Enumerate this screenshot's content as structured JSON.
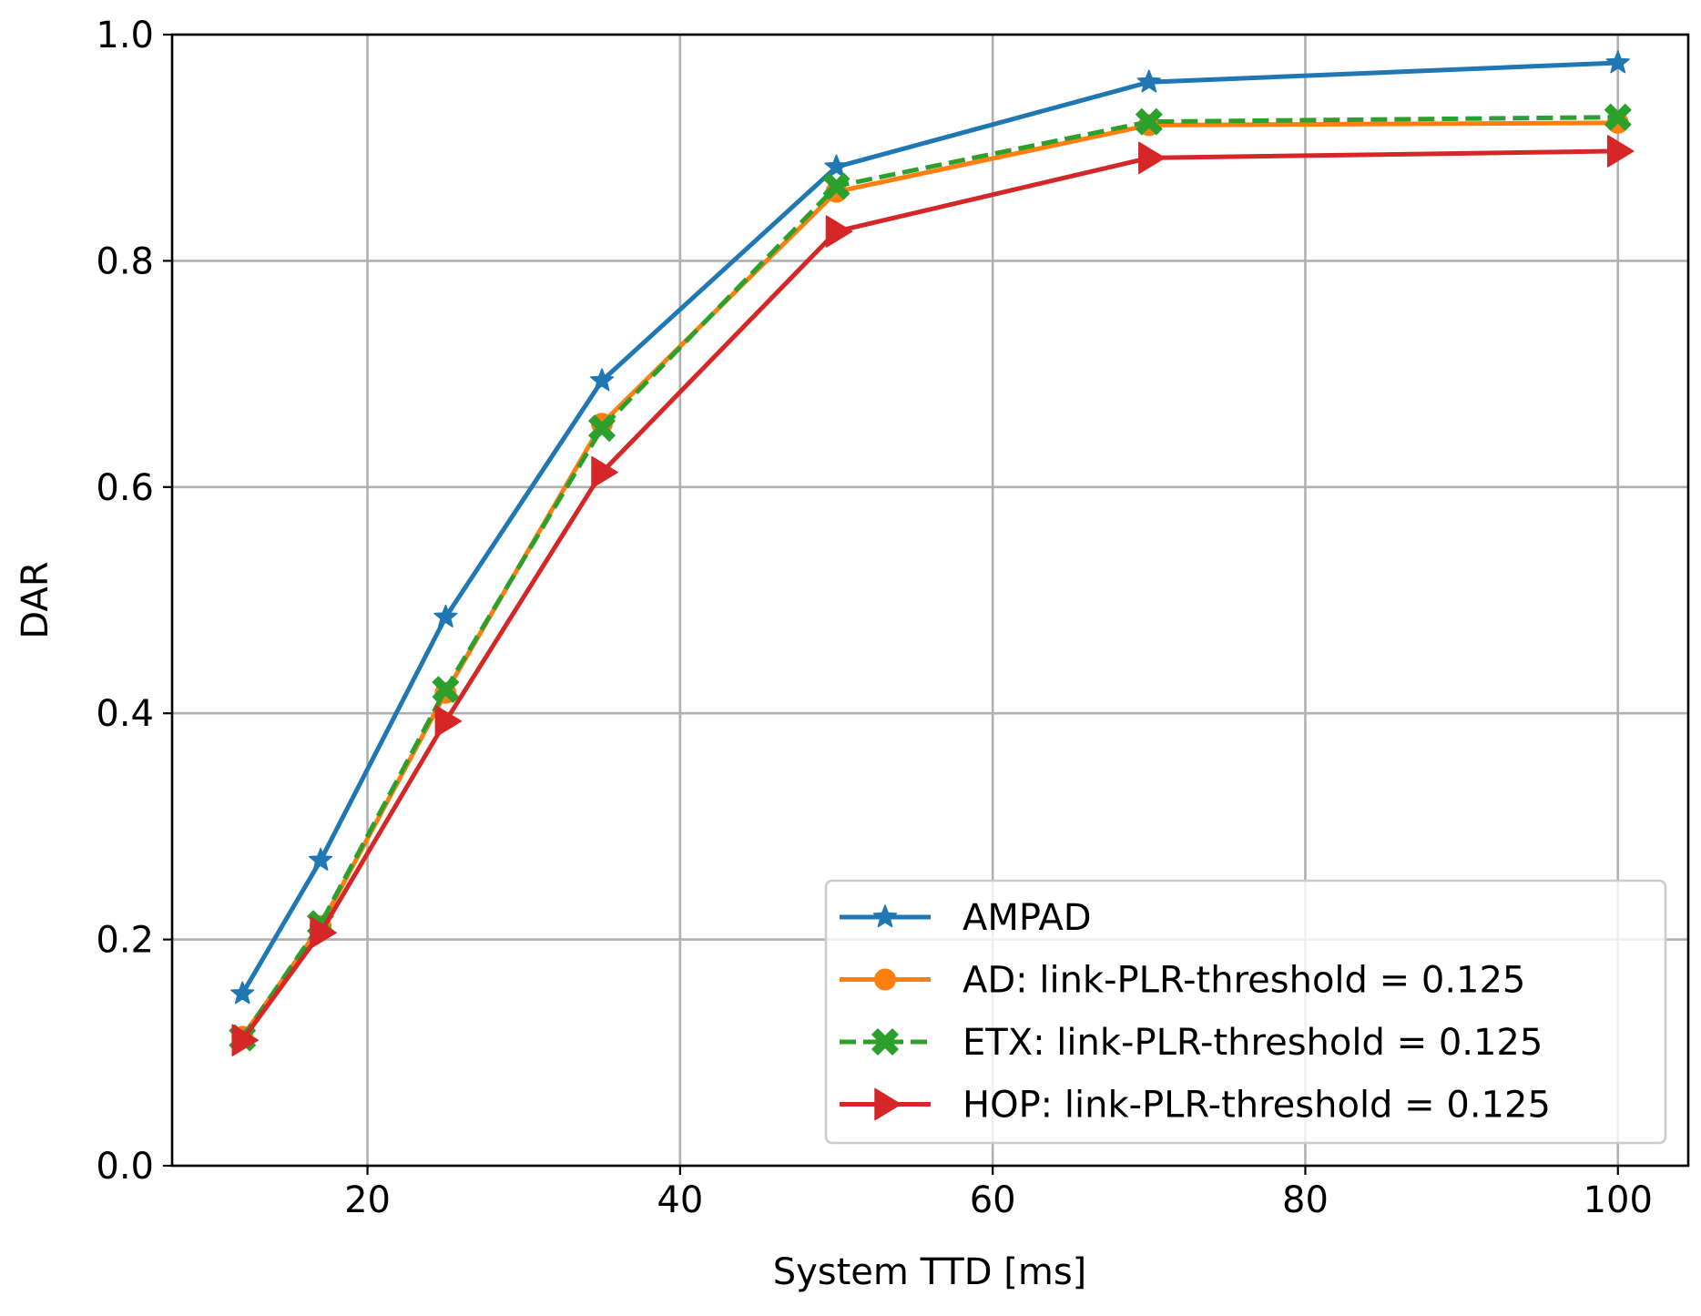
{
  "chart_data": {
    "type": "line",
    "title": "",
    "xlabel": "System TTD [ms]",
    "ylabel": "DAR",
    "xlim": [
      7.5,
      104.5
    ],
    "ylim": [
      0.0,
      1.0
    ],
    "grid": true,
    "legend_position": "lower-right",
    "x": [
      12,
      17,
      25,
      35,
      50,
      70,
      100
    ],
    "x_ticks": [
      20,
      40,
      60,
      80,
      100
    ],
    "x_tick_labels": [
      "20",
      "40",
      "60",
      "80",
      "100"
    ],
    "y_ticks": [
      0.0,
      0.2,
      0.4,
      0.6,
      0.8,
      1.0
    ],
    "y_tick_labels": [
      "0.0",
      "0.2",
      "0.4",
      "0.6",
      "0.8",
      "1.0"
    ],
    "series": [
      {
        "name": "AMPAD",
        "color": "#1f77b4",
        "marker": "star",
        "dash": "solid",
        "values": [
          0.152,
          0.27,
          0.485,
          0.694,
          0.883,
          0.958,
          0.975
        ]
      },
      {
        "name": "AD: link-PLR-threshold = 0.125",
        "color": "#ff7f0e",
        "marker": "circle",
        "dash": "solid",
        "values": [
          0.114,
          0.212,
          0.418,
          0.656,
          0.861,
          0.92,
          0.922
        ]
      },
      {
        "name": "ETX: link-PLR-threshold = 0.125",
        "color": "#2ca02c",
        "marker": "cross",
        "dash": "dashed",
        "values": [
          0.113,
          0.214,
          0.421,
          0.652,
          0.866,
          0.923,
          0.927
        ]
      },
      {
        "name": "HOP: link-PLR-threshold = 0.125",
        "color": "#d62728",
        "marker": "triangle-right",
        "dash": "solid",
        "values": [
          0.111,
          0.206,
          0.393,
          0.613,
          0.826,
          0.891,
          0.897
        ]
      }
    ]
  }
}
